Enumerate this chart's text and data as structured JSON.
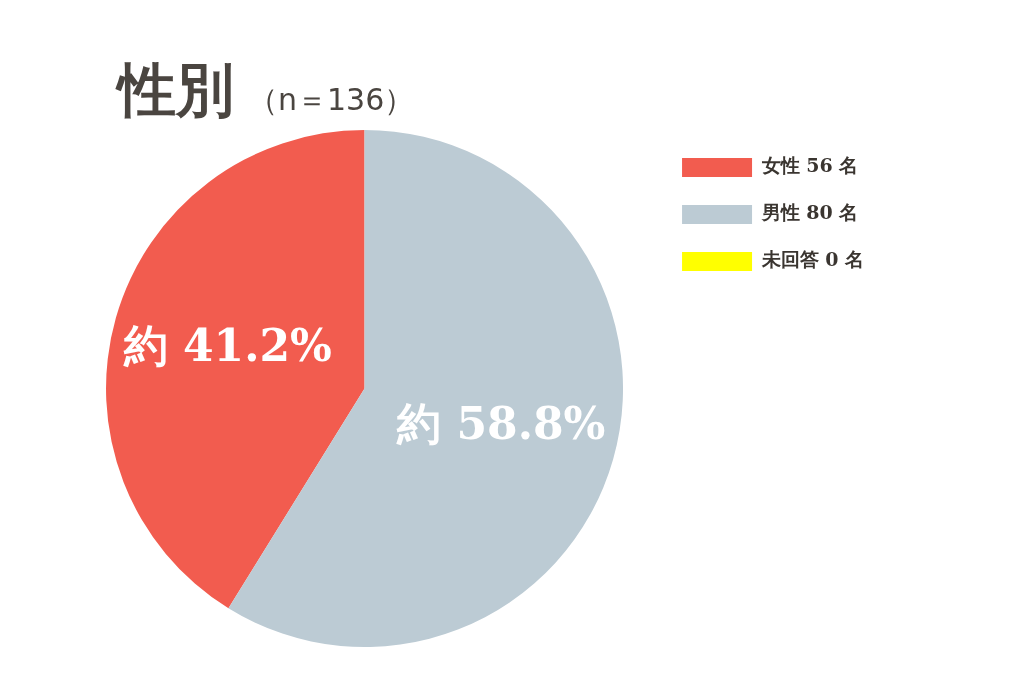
{
  "chart_data": {
    "type": "pie",
    "title": "性別",
    "subtitle": "（n＝136）",
    "categories": [
      "女性 56 名",
      "男性 80 名",
      "未回答 0 名"
    ],
    "values": [
      56,
      80,
      0
    ],
    "colors": [
      "#f25c4f",
      "#bccbd4",
      "#ffff00"
    ],
    "value_labels": [
      "約 41.2%",
      "約 58.8%",
      null
    ],
    "legend": "right"
  }
}
